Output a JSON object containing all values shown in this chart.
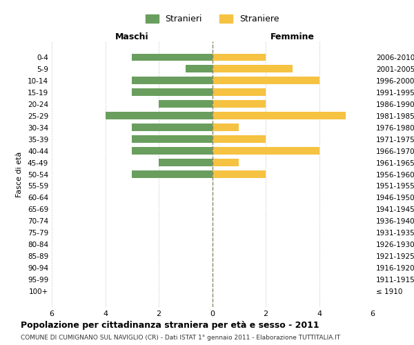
{
  "age_groups": [
    "100+",
    "95-99",
    "90-94",
    "85-89",
    "80-84",
    "75-79",
    "70-74",
    "65-69",
    "60-64",
    "55-59",
    "50-54",
    "45-49",
    "40-44",
    "35-39",
    "30-34",
    "25-29",
    "20-24",
    "15-19",
    "10-14",
    "5-9",
    "0-4"
  ],
  "birth_years": [
    "≤ 1910",
    "1911-1915",
    "1916-1920",
    "1921-1925",
    "1926-1930",
    "1931-1935",
    "1936-1940",
    "1941-1945",
    "1946-1950",
    "1951-1955",
    "1956-1960",
    "1961-1965",
    "1966-1970",
    "1971-1975",
    "1976-1980",
    "1981-1985",
    "1986-1990",
    "1991-1995",
    "1996-2000",
    "2001-2005",
    "2006-2010"
  ],
  "maschi": [
    0,
    0,
    0,
    0,
    0,
    0,
    0,
    0,
    0,
    0,
    3,
    2,
    3,
    3,
    3,
    4,
    2,
    3,
    3,
    1,
    3
  ],
  "femmine": [
    0,
    0,
    0,
    0,
    0,
    0,
    0,
    0,
    0,
    0,
    2,
    1,
    4,
    2,
    1,
    5,
    2,
    2,
    4,
    3,
    2
  ],
  "color_maschi": "#6a9e5e",
  "color_femmine": "#f5c242",
  "title": "Popolazione per cittadinanza straniera per età e sesso - 2011",
  "subtitle": "COMUNE DI CUMIGNANO SUL NAVIGLIO (CR) - Dati ISTAT 1° gennaio 2011 - Elaborazione TUTTITALIA.IT",
  "legend_maschi": "Stranieri",
  "legend_femmine": "Straniere",
  "xlabel_left": "Maschi",
  "xlabel_right": "Femmine",
  "ylabel_left": "Fasce di età",
  "xlim": 6,
  "background_color": "#ffffff",
  "grid_color": "#cccccc"
}
